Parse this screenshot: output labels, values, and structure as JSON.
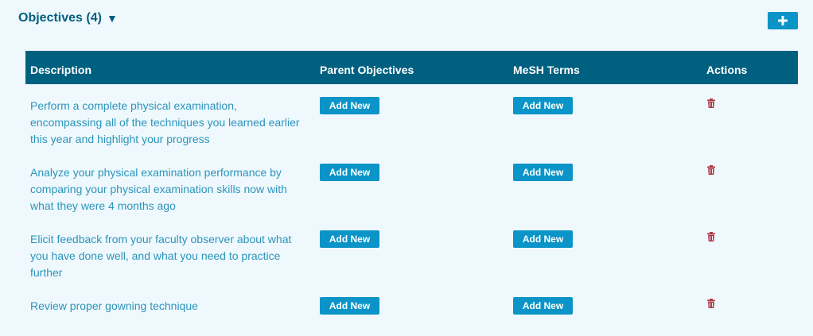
{
  "header": {
    "title": "Objectives (4)",
    "caret": "▼",
    "add_icon": "plus-icon"
  },
  "table": {
    "columns": [
      "Description",
      "Parent Objectives",
      "MeSH Terms",
      "Actions"
    ],
    "rows": [
      {
        "description": "Perform a complete physical examination, encompassing all of the techniques you learned earlier this year and highlight your progress",
        "parent_button": "Add New",
        "mesh_button": "Add New",
        "action_icon": "trash-icon"
      },
      {
        "description": "Analyze your physical examination performance by comparing your physical examination skills now with what they were 4 months ago",
        "parent_button": "Add New",
        "mesh_button": "Add New",
        "action_icon": "trash-icon"
      },
      {
        "description": "Elicit feedback from your faculty observer about what you have done well, and what you need to practice further",
        "parent_button": "Add New",
        "mesh_button": "Add New",
        "action_icon": "trash-icon"
      },
      {
        "description": "Review proper gowning technique",
        "parent_button": "Add New",
        "mesh_button": "Add New",
        "action_icon": "trash-icon"
      }
    ]
  },
  "colors": {
    "background": "#eff9fd",
    "header_bar": "#006080",
    "button": "#0a94c7",
    "link_text": "#2c94bb",
    "title_text": "#005f80",
    "trash": "#b03a4a"
  }
}
